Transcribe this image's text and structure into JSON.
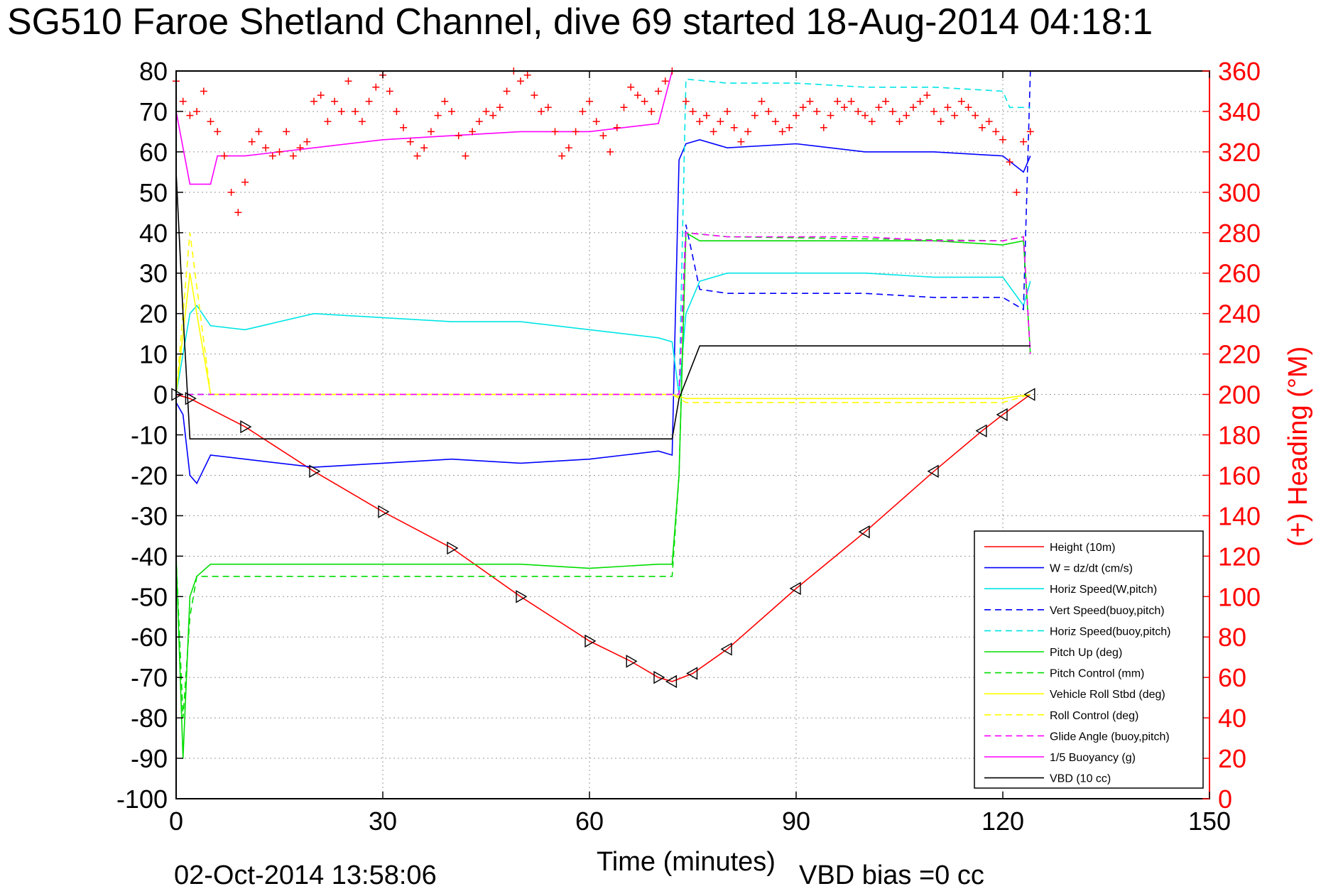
{
  "chart_data": {
    "type": "line",
    "title": "SG510 Faroe Shetland Channel, dive 69 started 18-Aug-2014 04:18:1",
    "xlabel": "Time (minutes)",
    "ylabel_right": "(+) Heading (°M)",
    "footer_date": "02-Oct-2014 13:58:06",
    "footer_note": "VBD bias =0 cc",
    "xlim": [
      0,
      150
    ],
    "ylim_left": [
      -100,
      80
    ],
    "ylim_right": [
      0,
      360
    ],
    "xticks": [
      "0",
      "30",
      "60",
      "90",
      "120",
      "150"
    ],
    "yticks_left": [
      "80",
      "70",
      "60",
      "50",
      "40",
      "30",
      "20",
      "10",
      "0",
      "-10",
      "-20",
      "-30",
      "-40",
      "-50",
      "-60",
      "-70",
      "-80",
      "-90",
      "-100"
    ],
    "yticks_right": [
      "360",
      "340",
      "320",
      "300",
      "280",
      "260",
      "240",
      "220",
      "200",
      "180",
      "160",
      "140",
      "120",
      "100",
      "80",
      "60",
      "40",
      "20",
      "0"
    ],
    "grid": true,
    "legend_position": "bottom-right",
    "series": [
      {
        "name": "Height (10m)",
        "color": "#ff0000",
        "style": "solid",
        "x": [
          0,
          2,
          10,
          20,
          30,
          40,
          50,
          60,
          66,
          70,
          72,
          75,
          80,
          90,
          100,
          110,
          117,
          120,
          124
        ],
        "y": [
          0,
          -1,
          -8,
          -19,
          -29,
          -38,
          -50,
          -61,
          -66,
          -70,
          -71,
          -69,
          -63,
          -48,
          -34,
          -19,
          -9,
          -5,
          0
        ]
      },
      {
        "name": "W = dz/dt (cm/s)",
        "color": "#0000ff",
        "style": "solid",
        "x": [
          0,
          1,
          2,
          3,
          5,
          10,
          20,
          30,
          40,
          50,
          60,
          65,
          70,
          72,
          73,
          74,
          76,
          80,
          90,
          100,
          110,
          120,
          123,
          124
        ],
        "y": [
          -2,
          -5,
          -20,
          -22,
          -15,
          -16,
          -18,
          -17,
          -16,
          -17,
          -16,
          -15,
          -14,
          -15,
          58,
          62,
          63,
          61,
          62,
          60,
          60,
          59,
          55,
          59
        ]
      },
      {
        "name": "Horiz Speed(W,pitch)",
        "color": "#00e5e5",
        "style": "solid",
        "x": [
          0,
          1,
          2,
          3,
          5,
          10,
          20,
          30,
          40,
          50,
          60,
          70,
          72,
          73,
          74,
          76,
          80,
          90,
          100,
          110,
          120,
          123,
          124
        ],
        "y": [
          0,
          10,
          20,
          22,
          17,
          16,
          20,
          19,
          18,
          18,
          16,
          14,
          13,
          0,
          20,
          28,
          30,
          30,
          30,
          29,
          29,
          22,
          28
        ]
      },
      {
        "name": "Vert Speed(buoy,pitch)",
        "color": "#0000ff",
        "style": "dashed",
        "x": [
          0,
          72,
          73,
          74,
          76,
          80,
          90,
          100,
          110,
          120,
          123,
          124
        ],
        "y": [
          0,
          0,
          0,
          42,
          26,
          25,
          25,
          25,
          24,
          24,
          21,
          80
        ]
      },
      {
        "name": "Horiz Speed(buoy,pitch)",
        "color": "#00e5e5",
        "style": "dashed",
        "x": [
          0,
          72,
          73,
          74,
          80,
          90,
          100,
          110,
          120,
          121,
          124
        ],
        "y": [
          0,
          0,
          0,
          78,
          77,
          77,
          76,
          76,
          75,
          71,
          71
        ]
      },
      {
        "name": "Pitch Up (deg)",
        "color": "#00dd00",
        "style": "solid",
        "x": [
          0,
          1,
          2,
          3,
          5,
          10,
          20,
          30,
          40,
          50,
          60,
          70,
          72,
          73,
          74,
          76,
          80,
          90,
          100,
          110,
          120,
          123,
          124
        ],
        "y": [
          -40,
          -90,
          -50,
          -45,
          -42,
          -42,
          -42,
          -42,
          -42,
          -42,
          -43,
          -42,
          -42,
          -20,
          40,
          38,
          38,
          38,
          38,
          38,
          37,
          38,
          10
        ]
      },
      {
        "name": "Pitch Control (mm)",
        "color": "#00dd00",
        "style": "dashed",
        "x": [
          0,
          1,
          2,
          3,
          72,
          73,
          74,
          80,
          120,
          123,
          124
        ],
        "y": [
          -40,
          -80,
          -55,
          -45,
          -45,
          -20,
          40,
          39,
          38,
          39,
          10
        ]
      },
      {
        "name": "Vehicle Roll Stbd (deg)",
        "color": "#ffff00",
        "style": "solid",
        "x": [
          0,
          2,
          5,
          10,
          20,
          30,
          40,
          50,
          60,
          70,
          72,
          74,
          80,
          90,
          100,
          110,
          120,
          124
        ],
        "y": [
          0,
          30,
          0,
          0,
          0,
          0,
          0,
          0,
          0,
          0,
          0,
          -1,
          -1,
          -1,
          -1,
          -1,
          -1,
          0
        ]
      },
      {
        "name": "Roll Control (deg)",
        "color": "#ffff00",
        "style": "dashed",
        "x": [
          0,
          2,
          5,
          10,
          20,
          30,
          40,
          50,
          60,
          70,
          72,
          74,
          80,
          90,
          100,
          110,
          120,
          124
        ],
        "y": [
          0,
          40,
          0,
          0,
          0,
          0,
          0,
          0,
          0,
          0,
          0,
          -2,
          -2,
          -2,
          -2,
          -2,
          -2,
          0
        ]
      },
      {
        "name": "Glide Angle (buoy,pitch)",
        "color": "#ff00ff",
        "style": "dashed",
        "x": [
          0,
          72,
          73,
          74,
          80,
          90,
          100,
          110,
          120,
          123,
          124
        ],
        "y": [
          0,
          0,
          0,
          40,
          39,
          39,
          39,
          38,
          38,
          39,
          10
        ]
      },
      {
        "name": "1/5 Buoyancy (g)",
        "color": "#ff00ff",
        "style": "solid",
        "x": [
          0,
          2,
          5,
          6,
          10,
          20,
          30,
          40,
          50,
          60,
          70,
          72
        ],
        "y": [
          70,
          52,
          52,
          59,
          59,
          61,
          63,
          64,
          65,
          65,
          67,
          80
        ]
      },
      {
        "name": "VBD (10 cc)",
        "color": "#000000",
        "style": "solid",
        "x": [
          0,
          1,
          2,
          10,
          20,
          30,
          40,
          50,
          60,
          70,
          72,
          73,
          76,
          80,
          90,
          100,
          110,
          120,
          124
        ],
        "y": [
          55,
          20,
          -11,
          -11,
          -11,
          -11,
          -11,
          -11,
          -11,
          -11,
          -11,
          -1,
          12,
          12,
          12,
          12,
          12,
          12,
          12
        ]
      }
    ],
    "heading_points": {
      "name": "(+) Heading",
      "color": "#ff0000",
      "x": [
        0,
        1,
        2,
        3,
        4,
        5,
        6,
        7,
        8,
        9,
        10,
        11,
        12,
        13,
        14,
        15,
        16,
        17,
        18,
        19,
        20,
        21,
        22,
        23,
        24,
        25,
        26,
        27,
        28,
        29,
        30,
        31,
        32,
        33,
        34,
        35,
        36,
        37,
        38,
        39,
        40,
        41,
        42,
        43,
        44,
        45,
        46,
        47,
        48,
        49,
        50,
        51,
        52,
        53,
        54,
        55,
        56,
        57,
        58,
        59,
        60,
        61,
        62,
        63,
        64,
        65,
        66,
        67,
        68,
        69,
        70,
        71,
        72,
        74,
        75,
        76,
        77,
        78,
        79,
        80,
        81,
        82,
        83,
        84,
        85,
        86,
        87,
        88,
        89,
        90,
        91,
        92,
        93,
        94,
        95,
        96,
        97,
        98,
        99,
        100,
        101,
        102,
        103,
        104,
        105,
        106,
        107,
        108,
        109,
        110,
        111,
        112,
        113,
        114,
        115,
        116,
        117,
        118,
        119,
        120,
        121,
        122,
        123,
        124
      ],
      "y": [
        355,
        345,
        338,
        340,
        350,
        335,
        330,
        318,
        300,
        290,
        305,
        325,
        330,
        322,
        318,
        320,
        330,
        318,
        322,
        325,
        345,
        348,
        335,
        345,
        340,
        355,
        340,
        335,
        345,
        352,
        358,
        350,
        340,
        332,
        325,
        318,
        322,
        330,
        338,
        345,
        340,
        328,
        318,
        330,
        335,
        340,
        338,
        342,
        350,
        360,
        355,
        358,
        348,
        340,
        342,
        330,
        318,
        322,
        330,
        340,
        345,
        335,
        328,
        320,
        332,
        342,
        352,
        348,
        345,
        340,
        350,
        355,
        360,
        345,
        340,
        335,
        338,
        330,
        335,
        340,
        332,
        325,
        330,
        338,
        345,
        340,
        335,
        330,
        332,
        338,
        342,
        345,
        340,
        332,
        338,
        345,
        342,
        345,
        340,
        338,
        335,
        342,
        345,
        340,
        335,
        338,
        342,
        345,
        348,
        340,
        335,
        342,
        338,
        345,
        342,
        338,
        332,
        335,
        330,
        326,
        315,
        300,
        325,
        330
      ]
    }
  }
}
